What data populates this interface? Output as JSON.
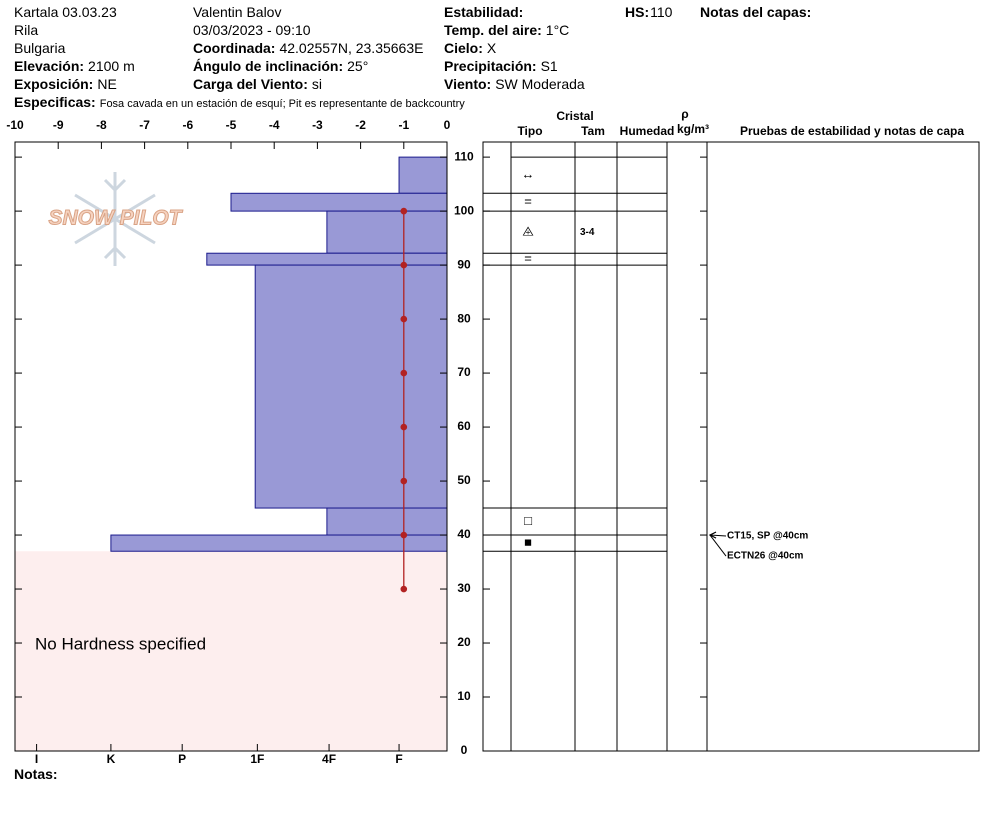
{
  "fields": [
    {
      "value": "Kartala 03.03.23"
    },
    {
      "value": "Rila"
    },
    {
      "value": "Bulgaria"
    },
    {
      "label": "Elevación:",
      "value": "2100 m"
    },
    {
      "label": "Exposición:",
      "value": "NE"
    },
    {
      "value": "Valentin Balov"
    },
    {
      "value": "03/03/2023 - 09:10"
    },
    {
      "label": "Coordinada:",
      "value": "42.02557N, 23.35663E"
    },
    {
      "label": "Ángulo de inclinación:",
      "value": "25°"
    },
    {
      "label": "Carga del Viento:",
      "value": "si"
    },
    {
      "label": "Estabilidad:"
    },
    {
      "label": "Temp. del aire:",
      "value": "1°C"
    },
    {
      "label": "Cielo:",
      "value": "X"
    },
    {
      "label": "Precipitación:",
      "value": "S1"
    },
    {
      "label": "Viento:",
      "value": "SW Moderada"
    },
    {
      "label": "HS:",
      "value": "110"
    },
    {
      "label": "Notas del capas:"
    },
    {
      "label": "Especificas:",
      "value": "Fosa cavada en un estación de esquí; Pit es representante de backcountry"
    },
    {
      "label": "Notas:"
    }
  ],
  "chart_data": {
    "type": "snow-profile",
    "logo": "SNOW PILOT",
    "xlim": [
      -10,
      0
    ],
    "xticks": [
      -10,
      -9,
      -8,
      -7,
      -6,
      -5,
      -4,
      -3,
      -2,
      -1,
      0
    ],
    "ylim": [
      0,
      112.8
    ],
    "yticks": [
      0,
      10,
      20,
      30,
      40,
      50,
      60,
      70,
      80,
      90,
      100,
      110
    ],
    "hardness_ticks": [
      {
        "value": -9.5,
        "label": "I"
      },
      {
        "value": -7.78,
        "label": "K"
      },
      {
        "value": -6.13,
        "label": "P"
      },
      {
        "value": -4.39,
        "label": "1F"
      },
      {
        "value": -2.73,
        "label": "4F"
      },
      {
        "value": -1.11,
        "label": "F"
      }
    ],
    "layers": {
      "color": "#9999d6",
      "top": [
        110,
        103.3,
        100,
        92.2,
        90,
        45,
        40
      ],
      "bottom": [
        103.3,
        100,
        92.2,
        90,
        45,
        40,
        37
      ],
      "hardness": [
        -1.11,
        -5,
        -2.78,
        -5.56,
        -4.44,
        -2.78,
        -7.78
      ],
      "grain": [
        "↔",
        "=",
        "⨹",
        "=",
        null,
        "□",
        "■"
      ],
      "size": [
        null,
        null,
        "3-4",
        null,
        null,
        null,
        null
      ]
    },
    "no_hardness": {
      "text": "No Hardness specified",
      "top": 37,
      "color": "#fdeeee"
    },
    "temperature": {
      "color": "#b22222",
      "heights": [
        100,
        90,
        80,
        70,
        60,
        50,
        40,
        30
      ],
      "values": [
        -1,
        -1,
        -1,
        -1,
        -1,
        -1,
        -1,
        -1
      ]
    },
    "table": {
      "crystal": "Cristal",
      "type": "Tipo",
      "size": "Tam",
      "moisture": "Humedad",
      "density_symbol": "ρ",
      "density_unit": "kg/m³",
      "tests": "Pruebas de estabilidad y notas de capa"
    },
    "tests": [
      {
        "text": "CT15, SP @40cm",
        "height": 40
      },
      {
        "text": "ECTN26 @40cm",
        "height": 40
      }
    ]
  }
}
